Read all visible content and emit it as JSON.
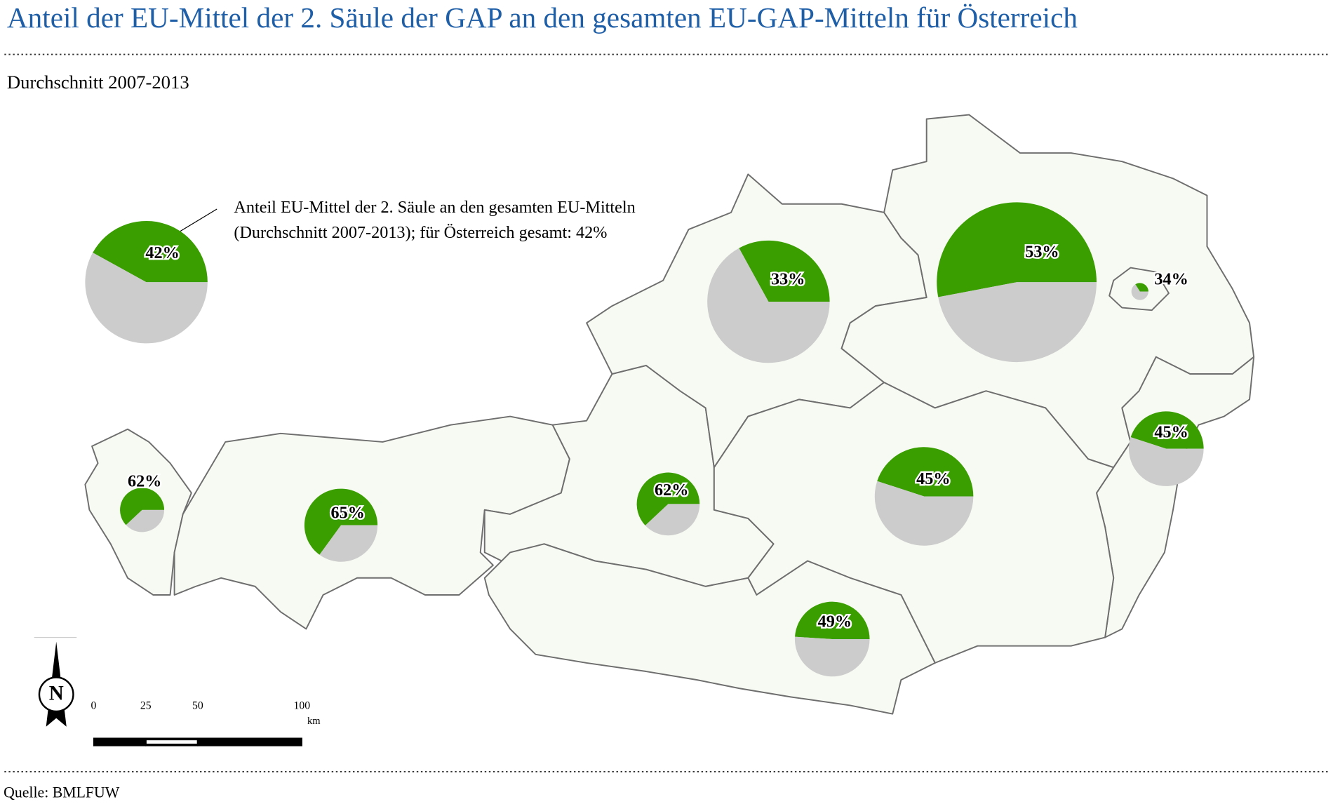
{
  "header": {
    "title": "Anteil der EU-Mittel der 2. Säule der GAP an den gesamten EU-GAP-Mitteln für Österreich",
    "subtitle": "Durchschnitt 2007-2013"
  },
  "legend": {
    "lines": [
      "Anteil EU-Mittel der 2. Säule an den gesamten EU-Mitteln",
      "(Durchschnitt 2007-2013); für Österreich gesamt: 42%"
    ],
    "pie": {
      "value": 42,
      "label": "42%"
    }
  },
  "pies": [
    {
      "value": 62,
      "label": "62%"
    },
    {
      "value": 65,
      "label": "65%"
    },
    {
      "value": 62,
      "label": "62%"
    },
    {
      "value": 33,
      "label": "33%"
    },
    {
      "value": 53,
      "label": "53%"
    },
    {
      "value": 34,
      "label": "34%"
    },
    {
      "value": 45,
      "label": "45%"
    },
    {
      "value": 45,
      "label": "45%"
    },
    {
      "value": 49,
      "label": "49%"
    }
  ],
  "colors": {
    "share": "#3a9e00",
    "rest": "#cccccc"
  },
  "north_arrow": "N",
  "scale_bar": {
    "ticks": [
      0,
      25,
      50,
      100
    ],
    "unit": "km"
  },
  "footer": {
    "source": "Quelle: BMLFUW"
  }
}
